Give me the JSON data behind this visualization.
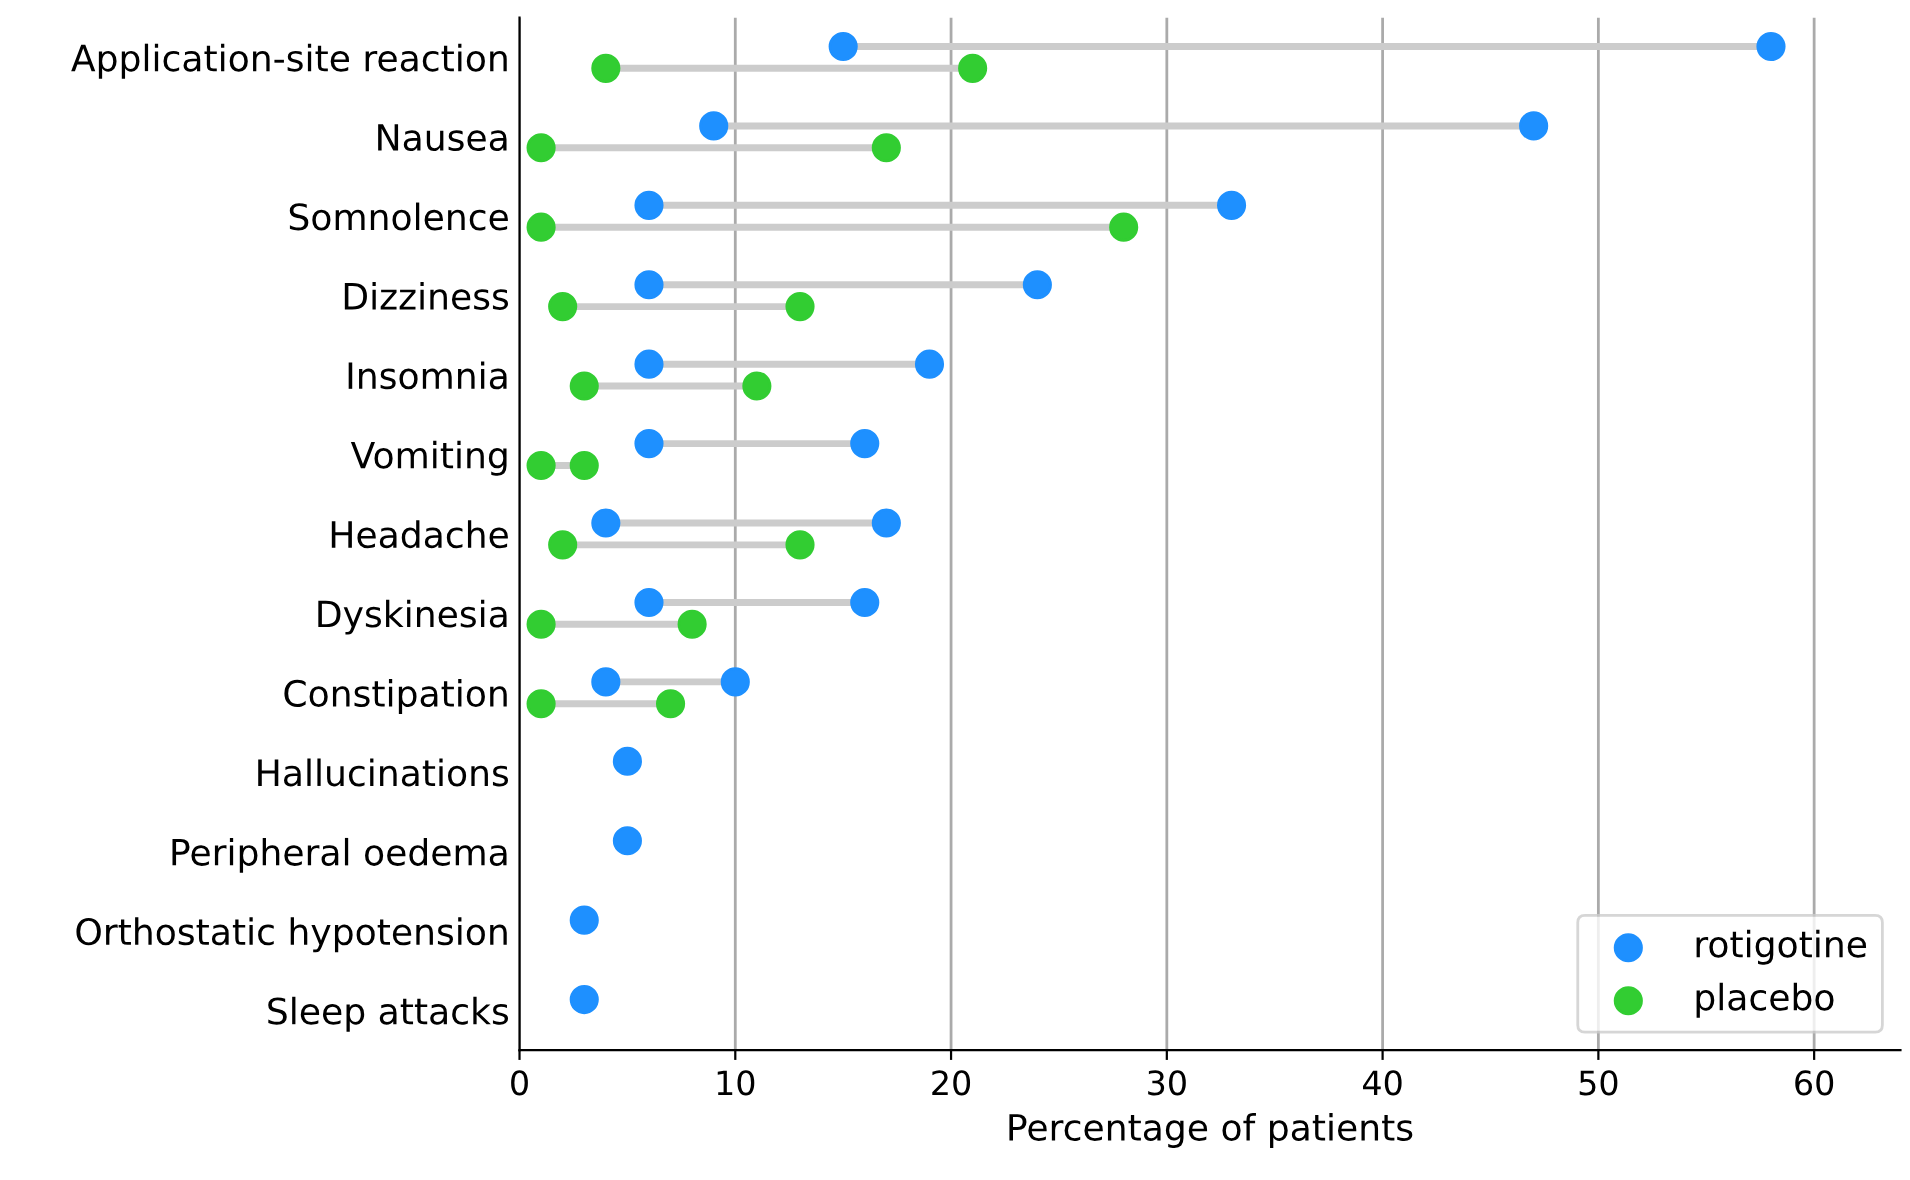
{
  "chart_data": {
    "type": "scatter",
    "orientation": "horizontal",
    "xlabel": "Percentage of patients",
    "categories": [
      "Application-site reaction",
      "Nausea",
      "Somnolence",
      "Dizziness",
      "Insomnia",
      "Vomiting",
      "Headache",
      "Dyskinesia",
      "Constipation",
      "Hallucinations",
      "Peripheral oedema",
      "Orthostatic hypotension",
      "Sleep attacks"
    ],
    "series": [
      {
        "name": "rotigotine",
        "color": "#1e90ff",
        "values": [
          15,
          9,
          6,
          6,
          6,
          6,
          4,
          6,
          4,
          5,
          5,
          3,
          3
        ]
      },
      {
        "color": "#1e90ff",
        "values": [
          58,
          47,
          33,
          24,
          19,
          16,
          17,
          16,
          10,
          null,
          null,
          null,
          null
        ]
      },
      {
        "name": "placebo",
        "color": "#32cd32",
        "values": [
          4,
          1,
          1,
          2,
          3,
          1,
          2,
          1,
          1,
          null,
          null,
          null,
          null
        ]
      },
      {
        "color": "#32cd32",
        "values": [
          21,
          17,
          28,
          13,
          11,
          3,
          13,
          8,
          7,
          null,
          null,
          null,
          null
        ]
      }
    ],
    "xlim": [
      0,
      64
    ],
    "xticks": [
      0,
      10,
      20,
      30,
      40,
      50,
      60
    ],
    "grid": "x",
    "legend": "bottom right",
    "marker": "circle"
  }
}
